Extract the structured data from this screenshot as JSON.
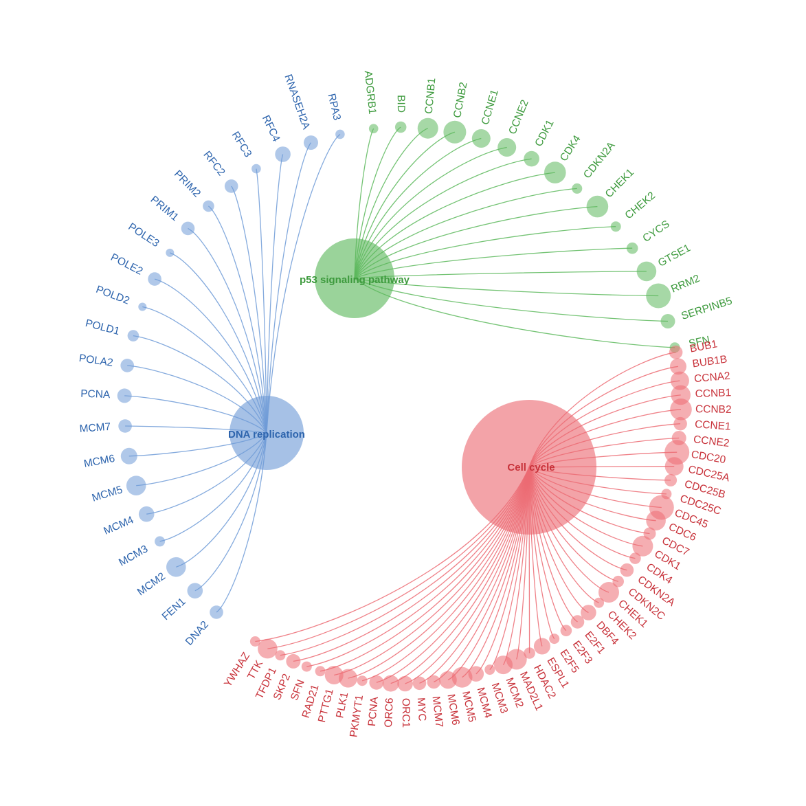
{
  "diagram": {
    "groups": [
      {
        "id": "p53",
        "label": "p53 signaling pathway",
        "color": "#5cb85c",
        "text_color": "#3d9a3d",
        "genes": [
          "ADGRB1",
          "BID",
          "CCNB1",
          "CCNB2",
          "CCNE1",
          "CCNE2",
          "CDK1",
          "CDK4",
          "CDKN2A",
          "CHEK1",
          "CHEK2",
          "CYCS",
          "GTSE1",
          "RRM2",
          "SERPINB5",
          "SFN"
        ],
        "gene_weights": [
          0.25,
          0.35,
          0.8,
          0.9,
          0.7,
          0.7,
          0.55,
          0.85,
          0.3,
          0.85,
          0.3,
          0.35,
          0.75,
          1.0,
          0.5,
          0.3
        ]
      },
      {
        "id": "cell-cycle",
        "label": "Cell cycle",
        "color": "#ec6b73",
        "text_color": "#c8323a",
        "genes": [
          "BUB1",
          "BUB1B",
          "CCNA2",
          "CCNB1",
          "CCNB2",
          "CCNE1",
          "CCNE2",
          "CDC20",
          "CDC25A",
          "CDC25B",
          "CDC25C",
          "CDC45",
          "CDC6",
          "CDC7",
          "CDK1",
          "CDK4",
          "CDKN2A",
          "CDKN2C",
          "CHEK1",
          "CHEK2",
          "DBF4",
          "E2F1",
          "E2F3",
          "E2F5",
          "ESPL1",
          "HDAC2",
          "MAD2L1",
          "MCM2",
          "MCM3",
          "MCM4",
          "MCM5",
          "MCM6",
          "MCM7",
          "MYC",
          "ORC1",
          "ORC6",
          "PCNA",
          "PKMYT1",
          "PLK1",
          "PTTG1",
          "RAD21",
          "SFN",
          "SKP2",
          "TFDP1",
          "TTK",
          "YWHAZ"
        ],
        "gene_weights": [
          0.45,
          0.6,
          0.7,
          0.75,
          0.85,
          0.45,
          0.5,
          1.0,
          0.7,
          0.4,
          0.3,
          1.0,
          0.75,
          0.4,
          0.8,
          0.35,
          0.45,
          0.35,
          0.8,
          0.3,
          0.55,
          0.45,
          0.35,
          0.3,
          0.6,
          0.35,
          0.8,
          0.7,
          0.3,
          0.55,
          0.8,
          0.65,
          0.45,
          0.45,
          0.55,
          0.6,
          0.5,
          0.3,
          0.7,
          0.7,
          0.3,
          0.3,
          0.5,
          0.3,
          0.75,
          0.3
        ]
      },
      {
        "id": "dna-replication",
        "label": "DNA replication",
        "color": "#6f9bd7",
        "text_color": "#2d64ad",
        "genes": [
          "DNA2",
          "FEN1",
          "MCM2",
          "MCM3",
          "MCM4",
          "MCM5",
          "MCM6",
          "MCM7",
          "PCNA",
          "POLA2",
          "POLD1",
          "POLD2",
          "POLE2",
          "POLE3",
          "PRIM1",
          "PRIM2",
          "RFC2",
          "RFC3",
          "RFC4",
          "RNASEH2A",
          "RPA3"
        ],
        "gene_weights": [
          0.45,
          0.55,
          0.75,
          0.3,
          0.55,
          0.75,
          0.6,
          0.45,
          0.5,
          0.45,
          0.35,
          0.2,
          0.45,
          0.2,
          0.45,
          0.35,
          0.45,
          0.25,
          0.55,
          0.5,
          0.25
        ]
      }
    ]
  }
}
